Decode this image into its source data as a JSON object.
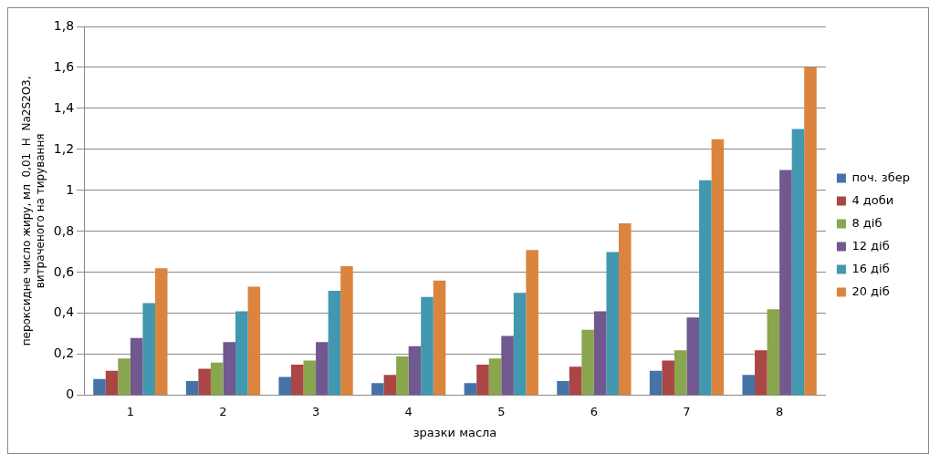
{
  "chart_data": {
    "type": "bar",
    "xlabel": "зразки масла",
    "ylabel": "пероксидне число жиру, мл  0,01  Н  Na2S2O3,\nвитраченого на тирування",
    "categories": [
      "1",
      "2",
      "3",
      "4",
      "5",
      "6",
      "7",
      "8"
    ],
    "series": [
      {
        "name": "поч. збер",
        "color": "#4572a7",
        "values": [
          0.08,
          0.07,
          0.09,
          0.06,
          0.06,
          0.07,
          0.12,
          0.1
        ]
      },
      {
        "name": "4 доби",
        "color": "#aa4643",
        "values": [
          0.12,
          0.13,
          0.15,
          0.1,
          0.15,
          0.14,
          0.17,
          0.22
        ]
      },
      {
        "name": "8 діб",
        "color": "#89a54e",
        "values": [
          0.18,
          0.16,
          0.17,
          0.19,
          0.18,
          0.32,
          0.22,
          0.42
        ]
      },
      {
        "name": "12 діб",
        "color": "#71588f",
        "values": [
          0.28,
          0.26,
          0.26,
          0.24,
          0.29,
          0.41,
          0.38,
          1.1
        ]
      },
      {
        "name": "16 діб",
        "color": "#4198af",
        "values": [
          0.45,
          0.41,
          0.51,
          0.48,
          0.5,
          0.7,
          1.05,
          1.3
        ]
      },
      {
        "name": "20 діб",
        "color": "#db843d",
        "values": [
          0.62,
          0.53,
          0.63,
          0.56,
          0.71,
          0.84,
          1.25,
          1.6
        ]
      }
    ],
    "ylim": [
      0,
      1.8
    ],
    "yticks": [
      0,
      {
        "value": 0.2,
        "label": "0,2"
      },
      {
        "value": 0.4,
        "label": "0,4"
      },
      {
        "value": 0.6,
        "label": "0,6"
      },
      {
        "value": 0.8,
        "label": "0,8"
      },
      1,
      {
        "value": 1.2,
        "label": "1,2"
      },
      {
        "value": 1.4,
        "label": "1,4"
      },
      {
        "value": 1.6,
        "label": "1,6"
      },
      {
        "value": 1.8,
        "label": "1,8"
      }
    ],
    "grid": "y",
    "legend": "right"
  }
}
